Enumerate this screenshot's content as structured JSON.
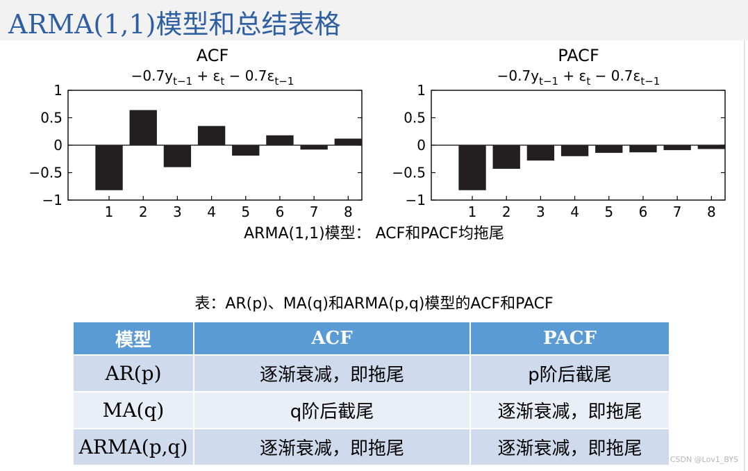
{
  "slide": {
    "title": "ARMA(1,1)模型和总结表格",
    "figure_caption": "ARMA(1,1)模型： ACF和PACF均拖尾",
    "table_caption": "表：AR(p)、MA(q)和ARMA(p,q)模型的ACF和PACF",
    "watermark": "CSDN @Lov1_BYS"
  },
  "table": {
    "headers": [
      "模型",
      "ACF",
      "PACF"
    ],
    "rows": [
      [
        "AR(p)",
        "逐渐衰减，即拖尾",
        "p阶后截尾"
      ],
      [
        "MA(q)",
        "q阶后截尾",
        "逐渐衰减，即拖尾"
      ],
      [
        "ARMA(p,q)",
        "逐渐衰减，即拖尾",
        "逐渐衰减，即拖尾"
      ]
    ]
  },
  "chart_data": [
    {
      "type": "bar",
      "title": "ACF",
      "subtitle": "−0.7y_{t−1} + ε_t − 0.7ε_{t−1}",
      "categories": [
        "1",
        "2",
        "3",
        "4",
        "5",
        "6",
        "7",
        "8"
      ],
      "values": [
        -0.82,
        0.64,
        -0.4,
        0.35,
        -0.19,
        0.18,
        -0.08,
        0.12
      ],
      "ylim": [
        -1,
        1
      ],
      "yticks": [
        "1",
        "0.5",
        "0",
        "−0.5",
        "−1"
      ],
      "grid": false,
      "bar_color": "#231f20"
    },
    {
      "type": "bar",
      "title": "PACF",
      "subtitle": "−0.7y_{t−1} + ε_t − 0.7ε_{t−1}",
      "categories": [
        "1",
        "2",
        "3",
        "4",
        "5",
        "6",
        "7",
        "8"
      ],
      "values": [
        -0.82,
        -0.43,
        -0.28,
        -0.2,
        -0.14,
        -0.13,
        -0.09,
        -0.07
      ],
      "ylim": [
        -1,
        1
      ],
      "yticks": [
        "1",
        "0.5",
        "0",
        "−0.5",
        "−1"
      ],
      "grid": false,
      "bar_color": "#231f20"
    }
  ]
}
